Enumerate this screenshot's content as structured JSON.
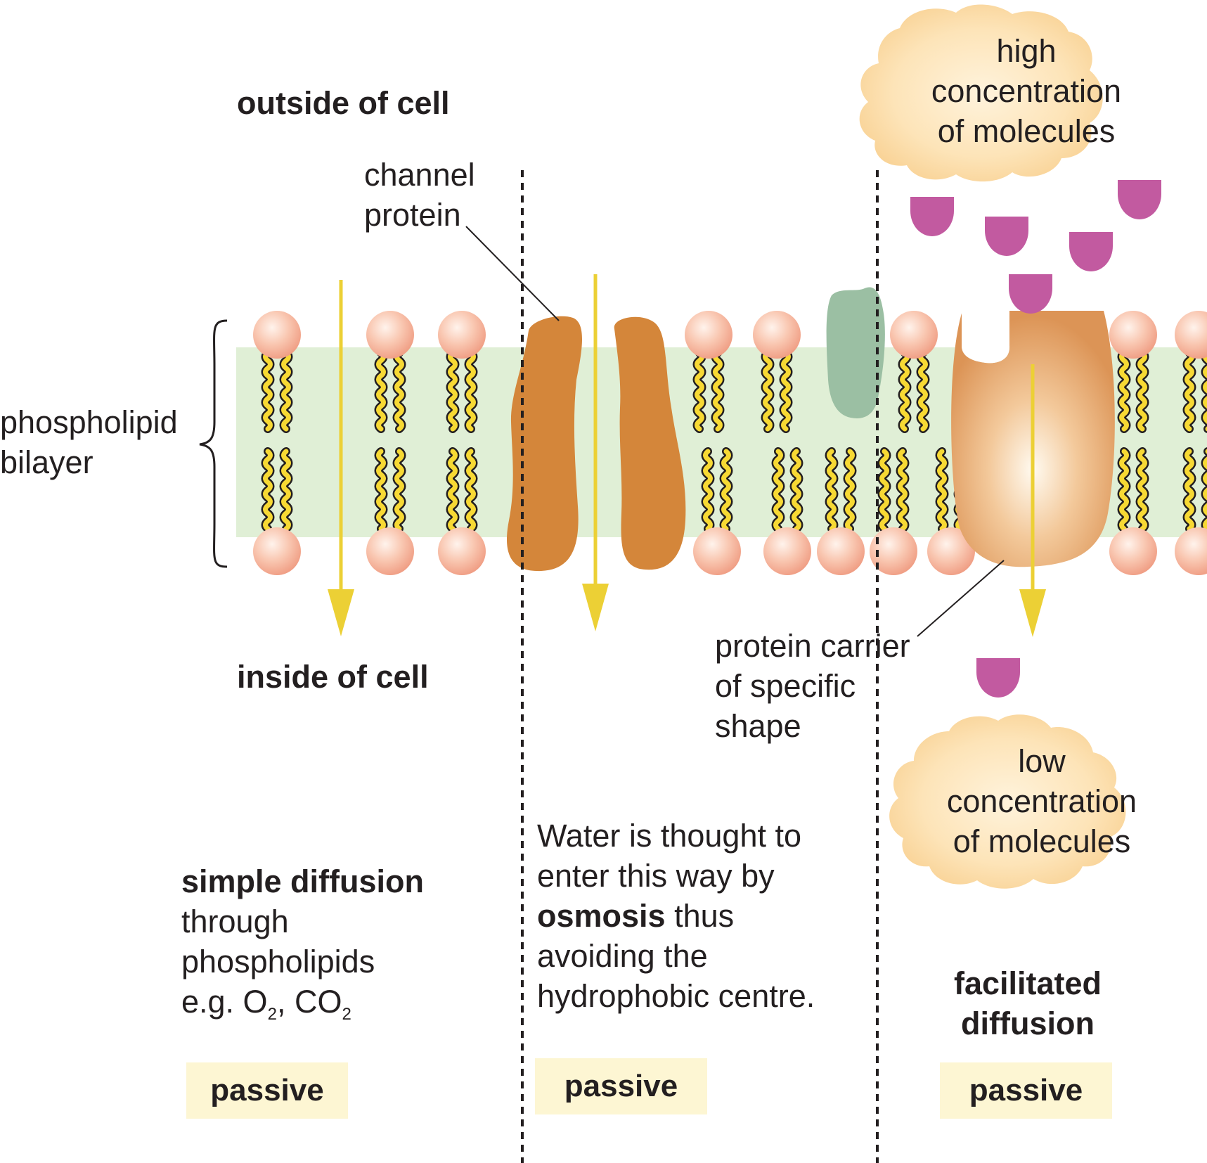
{
  "labels": {
    "outside": "outside of cell",
    "inside": "inside of cell",
    "channel_line1": "channel",
    "channel_line2": "protein",
    "bilayer_line1": "phospholipid",
    "bilayer_line2": "bilayer",
    "carrier_line1": "protein carrier",
    "carrier_line2": "of specific",
    "carrier_line3": "shape",
    "high_line1": "high",
    "high_line2": "concentration",
    "high_line3": "of molecules",
    "low_line1": "low",
    "low_line2": "concentration",
    "low_line3": "of molecules"
  },
  "simple": {
    "title": "simple diffusion",
    "line1": "through",
    "line2": "phospholipids",
    "line3_prefix": "e.g. O",
    "sub1": "2",
    "sep": ", CO",
    "sub2": "2"
  },
  "osmosis": {
    "line1": "Water is thought to",
    "line2": "enter this way by",
    "bold_word": "osmosis",
    "line3_rest": " thus",
    "line4": "avoiding the",
    "line5": "hydrophobic centre."
  },
  "facilitated": {
    "line1": "facilitated",
    "line2": "diffusion"
  },
  "badges": [
    "passive",
    "passive",
    "passive"
  ],
  "colors": {
    "membrane": "#e0efd6",
    "head": "#f5a98e",
    "tail": "#f7d934",
    "channel_protein": "#d4863a",
    "carrier_protein": "#e7a86b",
    "molecule": "#c25aa0",
    "green_protein": "#9bbfa3",
    "arrow": "#ecd035",
    "cloud": "#fbd9a0",
    "badge_bg": "#fdf6d3"
  }
}
